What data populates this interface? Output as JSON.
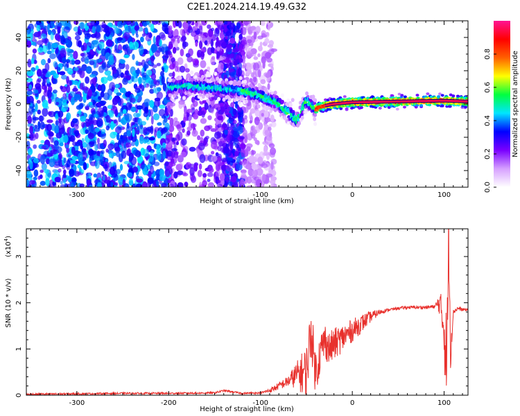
{
  "title": "C2E1.2024.214.19.49.G32",
  "chart_data": [
    {
      "type": "heatmap",
      "title": "C2E1.2024.214.19.49.G32",
      "xlabel": "Height of straight line (km)",
      "ylabel": "Frequency (Hz)",
      "xlim": [
        -355,
        126
      ],
      "ylim": [
        -50,
        50
      ],
      "xticks": [
        -300,
        -200,
        -100,
        0,
        100
      ],
      "yticks": [
        -40,
        -20,
        0,
        20,
        40
      ],
      "colorbar": {
        "label": "Normalized spectral amplitude",
        "range": [
          0,
          1
        ],
        "ticks": [
          "0.0",
          "0.2",
          "0.4",
          "0.6",
          "0.8"
        ],
        "tick_values": [
          0,
          0.2,
          0.4,
          0.6,
          0.8
        ],
        "colors": [
          "#ffffff",
          "#d6a0ff",
          "#7a00ff",
          "#0000ff",
          "#00e5ff",
          "#00ff40",
          "#ffff00",
          "#ff6000",
          "#ff0000",
          "#ff1493"
        ]
      },
      "ridge": {
        "x": [
          -200,
          -180,
          -160,
          -140,
          -120,
          -100,
          -80,
          -70,
          -60,
          -50,
          -40,
          -30,
          -20,
          0,
          50,
          100,
          126
        ],
        "y": [
          10,
          11,
          10,
          9,
          8,
          5,
          0,
          -5,
          -10,
          2,
          -3,
          -1,
          0,
          1,
          1.5,
          2,
          1.5
        ]
      }
    },
    {
      "type": "line",
      "xlabel": "Height of straight line (km)",
      "ylabel": "SNR (10 * v/v)",
      "yscale_label": "(x10",
      "yscale_exp": "4",
      "yscale_close": ")",
      "xlim": [
        -355,
        126
      ],
      "ylim": [
        0,
        3.6
      ],
      "xticks": [
        -300,
        -200,
        -100,
        0,
        100
      ],
      "yticks": [
        0,
        1,
        2,
        3
      ],
      "series": [
        {
          "color": "#e8302c",
          "x": [
            -355,
            -300,
            -250,
            -200,
            -150,
            -140,
            -120,
            -100,
            -90,
            -80,
            -70,
            -60,
            -50,
            -45,
            -40,
            -35,
            -30,
            -25,
            -20,
            -10,
            0,
            10,
            20,
            30,
            40,
            50,
            60,
            70,
            80,
            90,
            95,
            100,
            103,
            105,
            107,
            110,
            115,
            120,
            126
          ],
          "y": [
            0.02,
            0.03,
            0.04,
            0.04,
            0.05,
            0.1,
            0.04,
            0.05,
            0.1,
            0.2,
            0.3,
            0.45,
            0.5,
            1.4,
            0.5,
            0.9,
            1.2,
            1.0,
            1.1,
            1.25,
            1.4,
            1.55,
            1.7,
            1.8,
            1.85,
            1.88,
            1.9,
            1.9,
            1.9,
            1.92,
            2.0,
            1.5,
            0.3,
            3.6,
            1.0,
            1.8,
            1.88,
            1.85,
            1.85
          ],
          "noise_envelope": {
            "x": [
              -355,
              -100,
              -90,
              -80,
              -70,
              -60,
              -50,
              -40,
              -30,
              -20,
              -10,
              0,
              10,
              20,
              30,
              40,
              90,
              95,
              100,
              103,
              106,
              110,
              126
            ],
            "amp": [
              0.02,
              0.02,
              0.05,
              0.08,
              0.12,
              0.3,
              0.6,
              0.5,
              0.4,
              0.35,
              0.3,
              0.25,
              0.2,
              0.12,
              0.06,
              0.03,
              0.04,
              0.25,
              0.6,
              1.6,
              0.6,
              0.05,
              0.03
            ]
          }
        }
      ]
    }
  ]
}
